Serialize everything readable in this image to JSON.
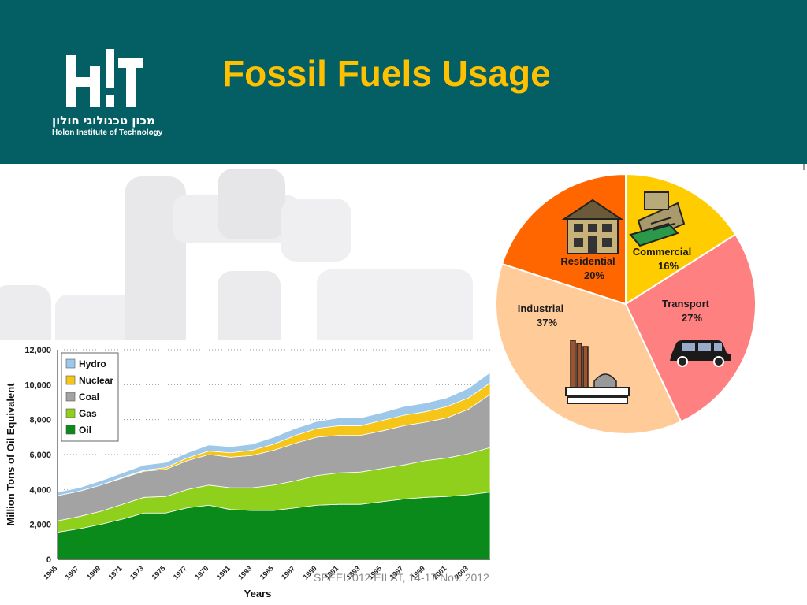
{
  "slide": {
    "title": "Fossil Fuels Usage",
    "footer": "SEEEI2012 EILAT, 14-17 Nov. 2012",
    "colors": {
      "header": "#045f65",
      "title": "#ffc000"
    }
  },
  "logo": {
    "hebrew_name": "מכון טכנולוגי חולון",
    "english_name": "Holon Institute of Technology"
  },
  "chart_data": [
    {
      "type": "area",
      "stacked": true,
      "xlabel": "Years",
      "ylabel": "Million Tons of Oil Equivalent",
      "ylim": [
        0,
        12000
      ],
      "yticks": [
        "0",
        "2,000",
        "4,000",
        "6,000",
        "8,000",
        "10,000",
        "12,000"
      ],
      "xticks": [
        "1965",
        "1967",
        "1969",
        "1971",
        "1973",
        "1975",
        "1977",
        "1979",
        "1981",
        "1983",
        "1985",
        "1987",
        "1989",
        "1991",
        "1993",
        "1995",
        "1997",
        "1999",
        "2001",
        "2003"
      ],
      "x": [
        1965,
        1967,
        1969,
        1971,
        1973,
        1975,
        1977,
        1979,
        1981,
        1983,
        1985,
        1987,
        1989,
        1991,
        1993,
        1995,
        1997,
        1999,
        2001,
        2003,
        2005
      ],
      "grid": "horizontal dotted",
      "legend_position": "top-left",
      "series": [
        {
          "name": "Oil",
          "color": "#0a8a1a",
          "values": [
            1550,
            1750,
            2000,
            2300,
            2650,
            2650,
            2950,
            3100,
            2850,
            2800,
            2800,
            2950,
            3100,
            3150,
            3150,
            3300,
            3450,
            3550,
            3600,
            3700,
            3850
          ]
        },
        {
          "name": "Gas",
          "color": "#8fd01c",
          "values": [
            650,
            700,
            750,
            850,
            900,
            950,
            1050,
            1150,
            1250,
            1300,
            1450,
            1550,
            1700,
            1800,
            1850,
            1900,
            1950,
            2100,
            2200,
            2350,
            2550
          ]
        },
        {
          "name": "Coal",
          "color": "#a3a3a3",
          "values": [
            1450,
            1450,
            1500,
            1500,
            1500,
            1550,
            1650,
            1750,
            1750,
            1850,
            2000,
            2150,
            2200,
            2150,
            2100,
            2150,
            2250,
            2200,
            2300,
            2550,
            3050
          ]
        },
        {
          "name": "Nuclear",
          "color": "#f5c518",
          "values": [
            0,
            0,
            0,
            50,
            50,
            100,
            150,
            200,
            250,
            300,
            350,
            450,
            500,
            550,
            550,
            600,
            600,
            600,
            650,
            650,
            650
          ]
        },
        {
          "name": "Hydro",
          "color": "#9ec8ea",
          "values": [
            200,
            200,
            250,
            250,
            300,
            300,
            300,
            350,
            350,
            350,
            400,
            400,
            400,
            450,
            450,
            450,
            500,
            500,
            500,
            550,
            600
          ]
        }
      ]
    },
    {
      "type": "pie",
      "slices": [
        {
          "label": "Commercial",
          "value": 16,
          "display": "16%",
          "color": "#ffcc00",
          "icon": "cash-register-icon"
        },
        {
          "label": "Transport",
          "value": 27,
          "display": "27%",
          "color": "#ff8080",
          "icon": "car-icon"
        },
        {
          "label": "Industrial",
          "value": 37,
          "display": "37%",
          "color": "#ffcc99",
          "icon": "factory-icon"
        },
        {
          "label": "Residential",
          "value": 20,
          "display": "20%",
          "color": "#ff6600",
          "icon": "house-icon"
        }
      ]
    }
  ]
}
